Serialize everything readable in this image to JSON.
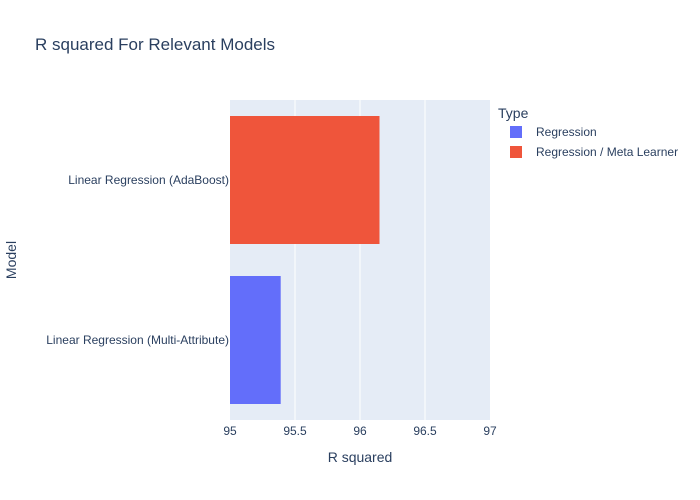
{
  "chart_data": {
    "type": "bar",
    "orientation": "horizontal",
    "title": "R squared For Relevant Models",
    "xlabel": "R squared",
    "ylabel": "Model",
    "xlim": [
      95,
      97
    ],
    "xticks": [
      95,
      95.5,
      96,
      96.5,
      97
    ],
    "xtick_labels": [
      "95",
      "95.5",
      "96",
      "96.5",
      "97"
    ],
    "categories": [
      "Linear Regression (AdaBoost)",
      "Linear Regression (Multi-Attribute)"
    ],
    "series": [
      {
        "name": "Regression",
        "color": "#636efa",
        "values": [
          null,
          95.39
        ]
      },
      {
        "name": "Regression / Meta Learner",
        "color": "#ef553b",
        "values": [
          96.15,
          null
        ]
      }
    ],
    "legend": {
      "title": "Type",
      "position": "top-right"
    },
    "grid": true,
    "colors": {
      "plot_background": "#e5ecf6",
      "grid": "#ffffff",
      "text": "#2a3f5f"
    }
  }
}
